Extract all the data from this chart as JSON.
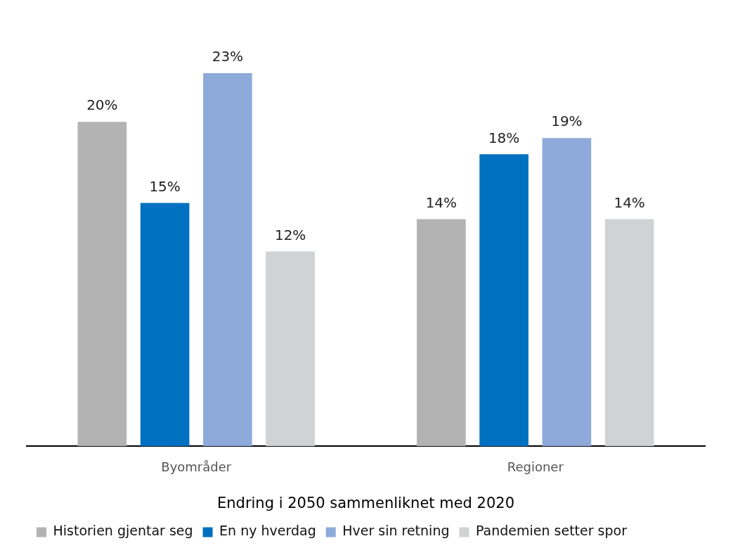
{
  "chart_data": {
    "type": "bar",
    "xlabel": "Endring i 2050 sammenliknet med 2020",
    "categories": [
      "Byområder",
      "Regioner"
    ],
    "series": [
      {
        "name": "Historien gjentar seg",
        "color": "#b3b3b3",
        "values": [
          20,
          14
        ],
        "value_labels": [
          "20%",
          "14%"
        ]
      },
      {
        "name": "En ny hverdag",
        "color": "#0070c0",
        "values": [
          15,
          18
        ],
        "value_labels": [
          "15%",
          "18%"
        ]
      },
      {
        "name": "Hver sin retning",
        "color": "#8eaadb",
        "values": [
          23,
          19
        ],
        "value_labels": [
          "23%",
          "19%"
        ]
      },
      {
        "name": "Pandemien setter spor",
        "color": "#d0d2d3",
        "values": [
          12,
          14
        ],
        "value_labels": [
          "12%",
          "14%"
        ]
      }
    ],
    "grid": false,
    "legend": "bottom"
  }
}
